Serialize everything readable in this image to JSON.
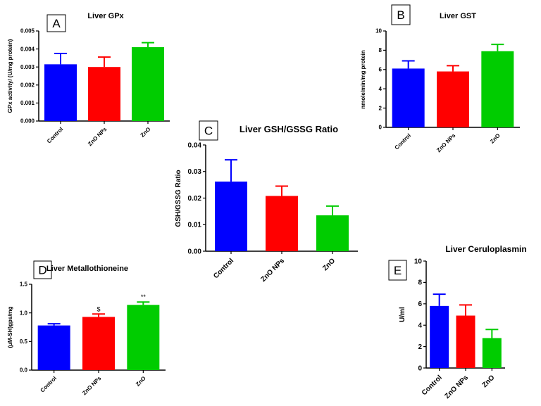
{
  "colors": {
    "control": "#0000ff",
    "zno_nps": "#ff0000",
    "zno": "#00cc00",
    "axis": "#000000"
  },
  "chart_data": [
    {
      "panel": "A",
      "type": "bar",
      "title": "Liver GPx",
      "ylabel": "GPx activity/ (U/mg protein)",
      "xlabel": "",
      "categories": [
        "Control",
        "ZnO NPs",
        "ZnO"
      ],
      "values": [
        0.00315,
        0.003,
        0.0041
      ],
      "errors": [
        0.0006,
        0.00055,
        0.00025
      ],
      "ylim": [
        0,
        0.005
      ],
      "yticks": [
        "0.000",
        "0.001",
        "0.002",
        "0.003",
        "0.004",
        "0.005"
      ],
      "annotations": [
        "",
        "",
        ""
      ]
    },
    {
      "panel": "B",
      "type": "bar",
      "title": "Liver GST",
      "ylabel": "nmole/min/mg protein",
      "xlabel": "",
      "categories": [
        "Control",
        "ZnO NPs",
        "ZnO"
      ],
      "values": [
        6.1,
        5.8,
        7.9
      ],
      "errors": [
        0.8,
        0.6,
        0.7
      ],
      "ylim": [
        0,
        10
      ],
      "yticks": [
        "0",
        "2",
        "4",
        "6",
        "8",
        "10"
      ],
      "annotations": [
        "",
        "",
        ""
      ]
    },
    {
      "panel": "C",
      "type": "bar",
      "title": "Liver GSH/GSSG Ratio",
      "ylabel": "GSH/GSSG Ratio",
      "xlabel": "",
      "categories": [
        "Control",
        "ZnO NPs",
        "ZnO"
      ],
      "values": [
        0.0262,
        0.0208,
        0.0135
      ],
      "errors": [
        0.0082,
        0.0037,
        0.0035
      ],
      "ylim": [
        0,
        0.04
      ],
      "yticks": [
        "0.00",
        "0.01",
        "0.02",
        "0.03",
        "0.04"
      ],
      "annotations": [
        "",
        "",
        ""
      ]
    },
    {
      "panel": "D",
      "type": "bar",
      "title": "Liver Metallothioneine",
      "ylabel": "(μM-SH)gps/mg",
      "xlabel": "",
      "categories": [
        "Control",
        "ZnO NPs",
        "ZnO"
      ],
      "values": [
        0.78,
        0.93,
        1.14
      ],
      "errors": [
        0.03,
        0.05,
        0.05
      ],
      "ylim": [
        0,
        1.5
      ],
      "yticks": [
        "0.0",
        "0.5",
        "1.0",
        "1.5"
      ],
      "annotations": [
        "",
        "$",
        "**"
      ]
    },
    {
      "panel": "E",
      "type": "bar",
      "title": "Liver Ceruloplasmin",
      "ylabel": "U/ml",
      "xlabel": "",
      "categories": [
        "Control",
        "ZnO NPs",
        "ZnO"
      ],
      "values": [
        5.8,
        4.9,
        2.8
      ],
      "errors": [
        1.1,
        1.0,
        0.8
      ],
      "ylim": [
        0,
        10
      ],
      "yticks": [
        "0",
        "2",
        "4",
        "6",
        "8",
        "10"
      ],
      "annotations": [
        "",
        "",
        ""
      ]
    }
  ]
}
